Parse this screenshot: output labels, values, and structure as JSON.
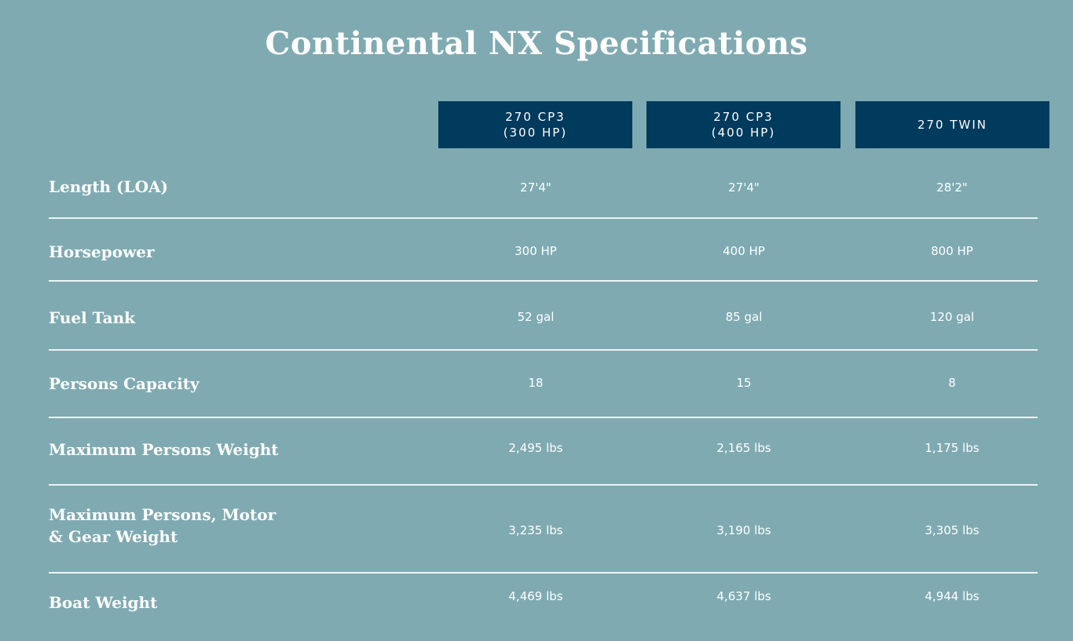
{
  "title": "Continental NX Specifications",
  "colors": {
    "background": "#7faab1",
    "header_fill": "#003a5c",
    "text": "#ffffff"
  },
  "columns": [
    "270 CP3\n(300 HP)",
    "270 CP3\n(400 HP)",
    "270 TWIN"
  ],
  "rows": [
    {
      "label": "Length (LOA)",
      "values": [
        "27'4\"",
        "27'4\"",
        "28'2\""
      ]
    },
    {
      "label": "Horsepower",
      "values": [
        "300 HP",
        "400 HP",
        "800 HP"
      ]
    },
    {
      "label": "Fuel Tank",
      "values": [
        "52 gal",
        "85 gal",
        "120 gal"
      ]
    },
    {
      "label": "Persons Capacity",
      "values": [
        "18",
        "15",
        "8"
      ]
    },
    {
      "label": "Maximum Persons Weight",
      "values": [
        "2,495 lbs",
        "2,165 lbs",
        "1,175 lbs"
      ]
    },
    {
      "label": "Maximum Persons, Motor\n& Gear Weight",
      "values": [
        "3,235 lbs",
        "3,190 lbs",
        "3,305 lbs"
      ]
    },
    {
      "label": "Boat Weight",
      "values": [
        "4,469 lbs",
        "4,637 lbs",
        "4,944 lbs"
      ]
    }
  ]
}
